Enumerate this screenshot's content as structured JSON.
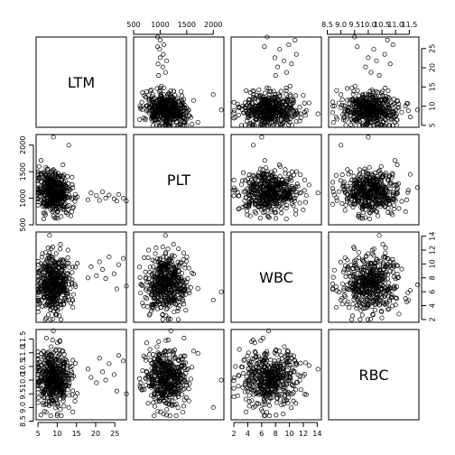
{
  "chart_data": {
    "type": "scatter",
    "variables": [
      "LTM",
      "PLT",
      "WBC",
      "RBC"
    ],
    "n_points": 500,
    "ranges": {
      "LTM": [
        4.5,
        28
      ],
      "PLT": [
        500,
        2200
      ],
      "WBC": [
        1.6,
        14.6
      ],
      "RBC": [
        8.55,
        11.85
      ]
    },
    "ticks": {
      "LTM": {
        "values": [
          5,
          10,
          15,
          20,
          25
        ],
        "labels": [
          "5",
          "10",
          "15",
          "20",
          "25"
        ]
      },
      "PLT": {
        "values": [
          500,
          1000,
          1500,
          2000
        ],
        "labels": [
          "500",
          "1000",
          "1500",
          "2000"
        ]
      },
      "WBC": {
        "values": [
          2,
          4,
          6,
          8,
          10,
          12,
          14
        ],
        "labels": [
          "2",
          "4",
          "6",
          "8",
          "10",
          "12",
          "14"
        ]
      },
      "RBC": {
        "values": [
          8.5,
          9.0,
          9.5,
          10.0,
          10.5,
          11.0,
          11.5
        ],
        "labels": [
          "8.5",
          "9.0",
          "9.5",
          "10.0",
          "10.5",
          "11.0",
          "11.5"
        ]
      }
    },
    "axis_sides": {
      "top": [
        1,
        3
      ],
      "right": [
        0,
        2
      ],
      "bottom": [
        0,
        2
      ],
      "left": [
        1,
        3
      ]
    },
    "outliers": [
      {
        "LTM": 27.2,
        "PLT": 1000,
        "WBC": 10.8,
        "RBC": 10.7
      },
      {
        "LTM": 26.0,
        "PLT": 1070,
        "WBC": 9.9,
        "RBC": 10.9
      },
      {
        "LTM": 24.8,
        "PLT": 990,
        "WBC": 8.6,
        "RBC": 10.2
      },
      {
        "LTM": 23.5,
        "PLT": 1060,
        "WBC": 11.0,
        "RBC": 10.6
      },
      {
        "LTM": 22.6,
        "PLT": 1000,
        "WBC": 7.9,
        "RBC": 10.0
      },
      {
        "LTM": 21.8,
        "PLT": 1120,
        "WBC": 9.2,
        "RBC": 10.3
      },
      {
        "LTM": 21.0,
        "PLT": 960,
        "WBC": 10.3,
        "RBC": 10.8
      },
      {
        "LTM": 20.2,
        "PLT": 1050,
        "WBC": 8.3,
        "RBC": 9.9
      },
      {
        "LTM": 18.8,
        "PLT": 1100,
        "WBC": 9.6,
        "RBC": 10.1
      },
      {
        "LTM": 18.0,
        "PLT": 970,
        "WBC": 8.0,
        "RBC": 10.4
      },
      {
        "LTM": 9.0,
        "PLT": 2150,
        "WBC": 6.0,
        "RBC": 10.0
      },
      {
        "LTM": 25.5,
        "PLT": 950,
        "WBC": 6.4,
        "RBC": 9.6
      },
      {
        "LTM": 8.0,
        "PLT": 1100,
        "WBC": 14.1,
        "RBC": 10.4
      },
      {
        "LTM": 11.0,
        "PLT": 1150,
        "WBC": 2.0,
        "RBC": 9.7
      },
      {
        "LTM": 9.0,
        "PLT": 1200,
        "WBC": 7.0,
        "RBC": 11.8
      },
      {
        "LTM": 10.0,
        "PLT": 1300,
        "WBC": 6.5,
        "RBC": 8.7
      },
      {
        "LTM": 28.0,
        "PLT": 950,
        "WBC": 6.8,
        "RBC": 9.5
      },
      {
        "LTM": 13.0,
        "PLT": 2000,
        "WBC": 4.8,
        "RBC": 9.0
      }
    ]
  }
}
